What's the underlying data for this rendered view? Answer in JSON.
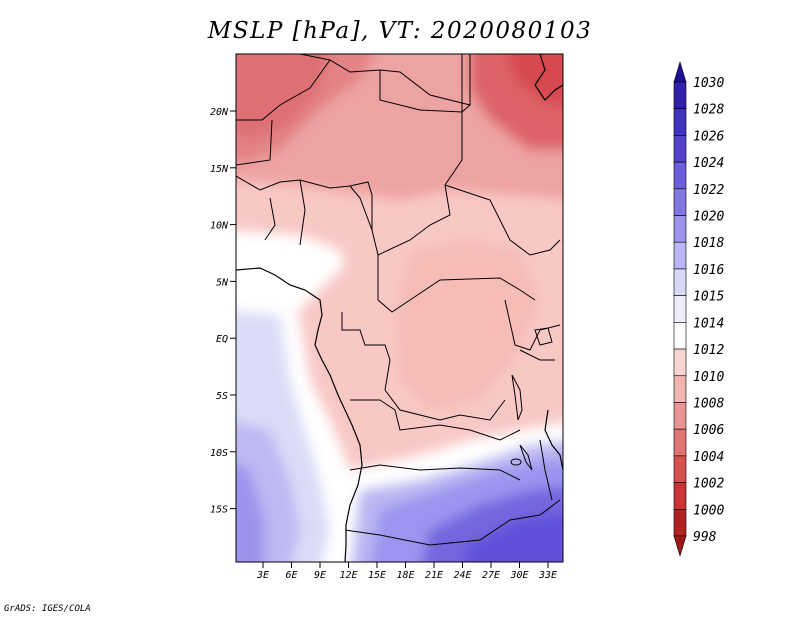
{
  "title": "MSLP [hPa], VT: 2020080103",
  "credit": "GrADS: IGES/COLA",
  "map": {
    "lon_range": [
      0,
      35
    ],
    "lat_range": [
      -20,
      25
    ],
    "lat_ticks": [
      "20N",
      "15N",
      "10N",
      "5N",
      "EQ",
      "5S",
      "10S",
      "15S"
    ],
    "lon_ticks": [
      "3E",
      "6E",
      "9E",
      "12E",
      "15E",
      "18E",
      "21E",
      "24E",
      "27E",
      "30E",
      "33E"
    ],
    "regions": [
      {
        "level": "1004",
        "color": "#d6484f",
        "note": "northwest Sahara low"
      },
      {
        "level": "1004",
        "color": "#d6484f",
        "note": "Sudan / Red Sea low"
      },
      {
        "level": "1008",
        "color": "#eea3a3",
        "note": "Sahel"
      },
      {
        "level": "1010",
        "color": "#f8c8c5",
        "note": "central Africa"
      },
      {
        "level": "1014",
        "color": "#ffffff",
        "note": "Gulf of Guinea coast"
      },
      {
        "level": "1016",
        "color": "#dadcf7",
        "note": "South Atlantic"
      },
      {
        "level": "1020",
        "color": "#9a95ef",
        "note": "southern Angola"
      },
      {
        "level": "1024",
        "color": "#5e50d9",
        "note": "Zambia / Zimbabwe high"
      }
    ]
  },
  "colorbar": {
    "levels": [
      "1030",
      "1028",
      "1026",
      "1024",
      "1022",
      "1020",
      "1018",
      "1016",
      "1015",
      "1014",
      "1012",
      "1010",
      "1008",
      "1006",
      "1004",
      "1002",
      "1000",
      "998"
    ],
    "colors": [
      "#1e1097",
      "#2e20ab",
      "#3f33bd",
      "#5444cc",
      "#6b5fd9",
      "#8177e3",
      "#9c94ec",
      "#bab6f3",
      "#d8d8f8",
      "#eeeefb",
      "#ffffff",
      "#f9d5d2",
      "#f2b4b1",
      "#ea9595",
      "#e07373",
      "#d65050",
      "#c93535",
      "#b12323",
      "#a01818"
    ]
  }
}
